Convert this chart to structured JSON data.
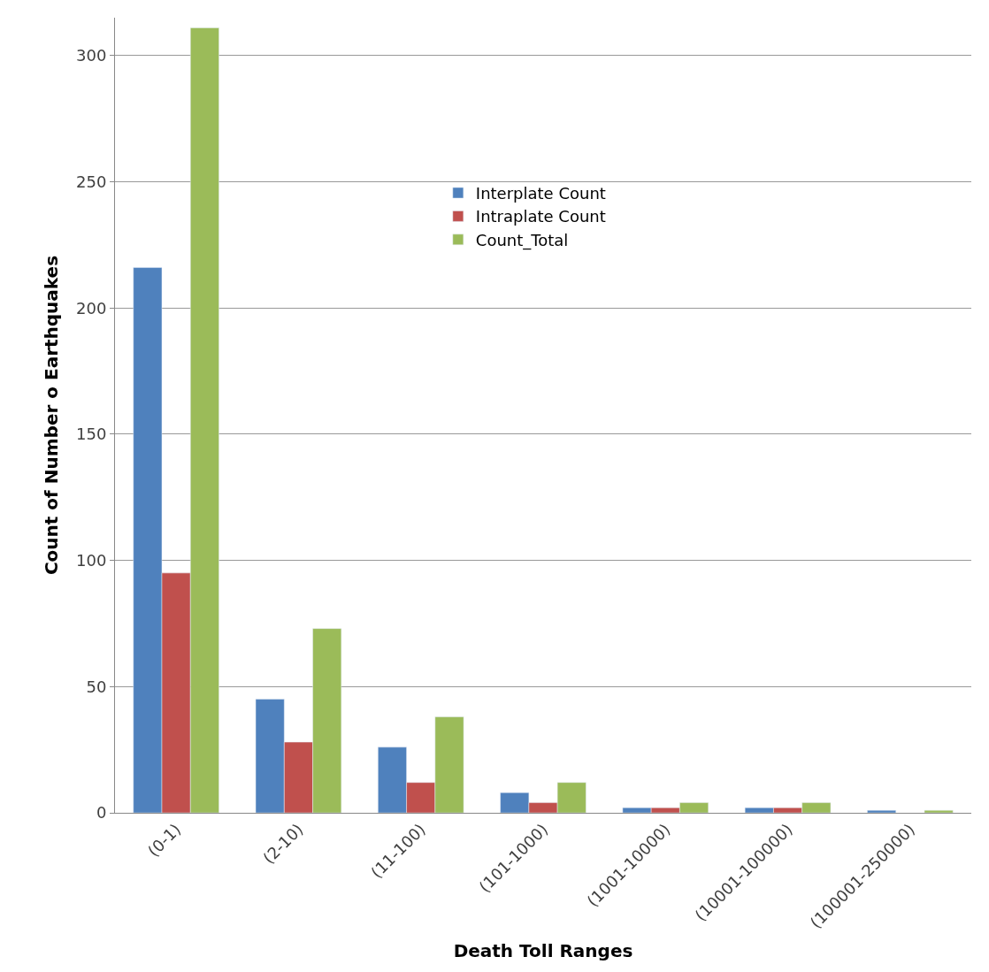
{
  "chart_data": {
    "type": "bar",
    "xlabel": "Death Toll Ranges",
    "ylabel": "Count of Number o Earthquakes",
    "categories": [
      "(0-1)",
      "(2-10)",
      "(11-100)",
      "(101-1000)",
      "(1001-10000)",
      "(10001-100000)",
      "(100001-250000)"
    ],
    "series": [
      {
        "name": "Interplate Count",
        "color": "#4f81bd",
        "values": [
          216,
          45,
          26,
          8,
          2,
          2,
          1
        ]
      },
      {
        "name": "Intraplate Count",
        "color": "#c0504d",
        "values": [
          95,
          28,
          12,
          4,
          2,
          2,
          null
        ]
      },
      {
        "name": "Count_Total",
        "color": "#9bbb59",
        "values": [
          311,
          73,
          38,
          12,
          4,
          4,
          1
        ]
      }
    ],
    "ylim": [
      0,
      315
    ],
    "yticks": [
      0,
      50,
      100,
      150,
      200,
      250,
      300
    ],
    "grid": "y",
    "legend": "top"
  }
}
